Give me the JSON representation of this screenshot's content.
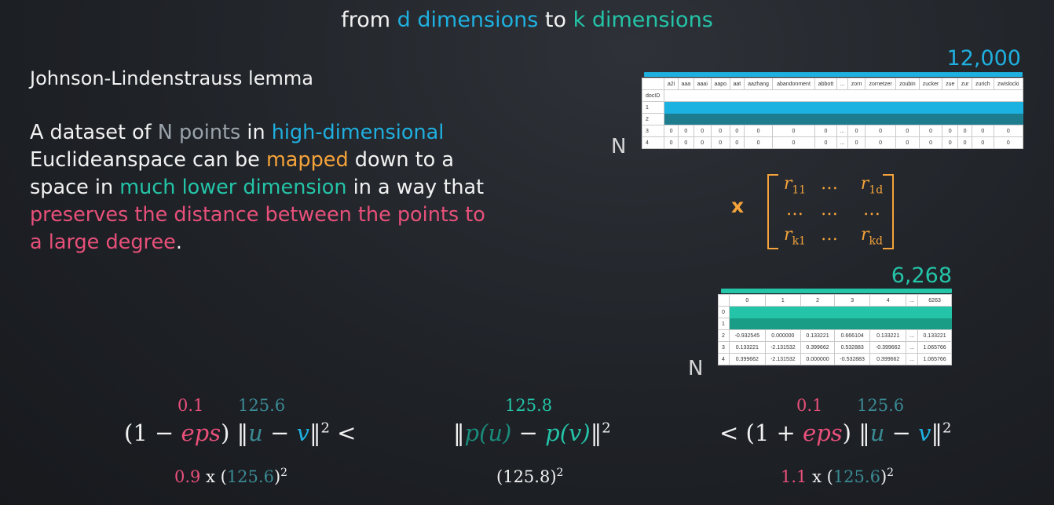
{
  "title": {
    "from": "from",
    "d_dims": "d dimensions",
    "to": "to",
    "k_dims": "k dimensions"
  },
  "lemma": {
    "title": "Johnson-Lindenstrauss lemma",
    "p1": "A dataset of",
    "n_points": "N points",
    "p2": "in",
    "high_dim": "high-dimensional",
    "p3": "Euclideanspace can be",
    "mapped": "mapped",
    "p4": "down to a space in",
    "lower_dim": "much lower dimension",
    "p5": "in a way that",
    "preserves": "preserves the distance between the points to a large degree",
    "p6": "."
  },
  "colors": {
    "blue": "#1fb0e0",
    "teal": "#24c4a8",
    "orange": "#f5a33a",
    "pink": "#e8507a"
  },
  "table1": {
    "count": "12,000",
    "n_label": "N",
    "columns": [
      "",
      "a2i",
      "aaa",
      "aaai",
      "aapo",
      "aat",
      "aazhang",
      "abandonment",
      "abbott",
      "...",
      "zorn",
      "zornetzer",
      "zoubin",
      "zucker",
      "zue",
      "zur",
      "zurich",
      "zwislocki"
    ],
    "index_name": "docID",
    "rows": [
      {
        "idx": "1",
        "vals": []
      },
      {
        "idx": "2",
        "vals": []
      },
      {
        "idx": "3",
        "vals": [
          "0",
          "0",
          "0",
          "0",
          "0",
          "0",
          "0",
          "0",
          "...",
          "0",
          "0",
          "0",
          "0",
          "0",
          "0",
          "0",
          "0"
        ]
      },
      {
        "idx": "4",
        "vals": [
          "0",
          "0",
          "0",
          "0",
          "0",
          "0",
          "0",
          "0",
          "...",
          "0",
          "0",
          "0",
          "0",
          "0",
          "0",
          "0",
          "0"
        ]
      }
    ]
  },
  "matrix": {
    "times": "x",
    "r11": "r",
    "r11_sub": "11",
    "dots": "…",
    "r1d": "r",
    "r1d_sub": "1d",
    "rk1": "r",
    "rk1_sub": "k1",
    "rkd": "r",
    "rkd_sub": "kd"
  },
  "table2": {
    "count": "6,268",
    "n_label": "N",
    "columns": [
      "",
      "0",
      "1",
      "2",
      "3",
      "4",
      "...",
      "6263"
    ],
    "rows": [
      {
        "idx": "0",
        "vals": []
      },
      {
        "idx": "1",
        "vals": []
      },
      {
        "idx": "2",
        "vals": [
          "-0.932545",
          "0.000000",
          "0.133221",
          "0.666104",
          "0.133221",
          "...",
          "0.133221"
        ]
      },
      {
        "idx": "3",
        "vals": [
          "0.133221",
          "-2.131532",
          "0.399662",
          "0.532883",
          "-0.399662",
          "...",
          "1.065766"
        ]
      },
      {
        "idx": "4",
        "vals": [
          "0.399662",
          "-2.131532",
          "0.000000",
          "-0.532883",
          "0.399662",
          "...",
          "1.065766"
        ]
      }
    ]
  },
  "formulas": {
    "left": {
      "eps_val": "0.1",
      "dist_val": "125.6",
      "lhs": "(1 −",
      "eps": "eps",
      "close": ")",
      "u": "u",
      "minus": "−",
      "v": "v",
      "cmp": "<",
      "sub_coef": "0.9",
      "x": "x",
      "sub_val": "125.6"
    },
    "middle": {
      "dist_val": "125.8",
      "pu": "p(u)",
      "minus": "−",
      "pv": "p(v)",
      "sub_val": "125.8"
    },
    "right": {
      "eps_val": "0.1",
      "dist_val": "125.6",
      "cmp": "<",
      "lhs": "(1 +",
      "eps": "eps",
      "close": ")",
      "u": "u",
      "minus": "−",
      "v": "v",
      "sub_coef": "1.1",
      "x": "x",
      "sub_val": "125.6"
    },
    "sq": "2"
  }
}
